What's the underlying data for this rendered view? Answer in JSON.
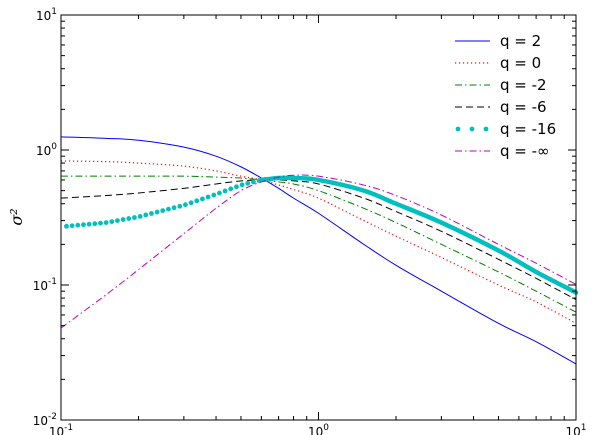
{
  "chart_data": {
    "type": "line",
    "title": "",
    "xlabel": "",
    "ylabel": "σ²",
    "xscale": "log",
    "yscale": "log",
    "xlim": [
      0.1,
      10
    ],
    "ylim": [
      0.01,
      10
    ],
    "grid": false,
    "legend_position": "top-right",
    "x_ticks": [
      {
        "value": 0.1,
        "base": "10",
        "exp": "-1"
      },
      {
        "value": 1,
        "base": "10",
        "exp": "0"
      },
      {
        "value": 10,
        "base": "10",
        "exp": "1"
      }
    ],
    "y_ticks": [
      {
        "value": 0.01,
        "base": "10",
        "exp": "-2"
      },
      {
        "value": 0.1,
        "base": "10",
        "exp": "-1"
      },
      {
        "value": 1,
        "base": "10",
        "exp": "0"
      },
      {
        "value": 10,
        "base": "10",
        "exp": "1"
      }
    ],
    "x": [
      0.1,
      0.15,
      0.2,
      0.3,
      0.4,
      0.5,
      0.6,
      0.7,
      0.8,
      1.0,
      1.5,
      2.0,
      3.0,
      5.0,
      7.0,
      10.0
    ],
    "series": [
      {
        "name": "q = 2",
        "color": "#0000ff",
        "style": "solid",
        "values": [
          1.25,
          1.22,
          1.18,
          1.05,
          0.9,
          0.75,
          0.62,
          0.52,
          0.44,
          0.34,
          0.2,
          0.14,
          0.09,
          0.052,
          0.038,
          0.026
        ]
      },
      {
        "name": "q = 0",
        "color": "#ff0000",
        "style": "dotted",
        "values": [
          0.83,
          0.82,
          0.8,
          0.76,
          0.7,
          0.64,
          0.6,
          0.55,
          0.51,
          0.44,
          0.3,
          0.23,
          0.16,
          0.1,
          0.075,
          0.052
        ]
      },
      {
        "name": "q = -2",
        "color": "#007f00",
        "style": "dashdot",
        "values": [
          0.64,
          0.64,
          0.64,
          0.64,
          0.63,
          0.62,
          0.6,
          0.58,
          0.56,
          0.5,
          0.37,
          0.29,
          0.2,
          0.125,
          0.09,
          0.063
        ]
      },
      {
        "name": "q = -6",
        "color": "#000000",
        "style": "dashed",
        "values": [
          0.44,
          0.46,
          0.48,
          0.52,
          0.56,
          0.59,
          0.6,
          0.6,
          0.59,
          0.56,
          0.44,
          0.35,
          0.25,
          0.155,
          0.112,
          0.078
        ]
      },
      {
        "name": "q = -16",
        "color": "#00bfbf",
        "style": "dots-thick",
        "values": [
          0.27,
          0.29,
          0.32,
          0.39,
          0.47,
          0.55,
          0.6,
          0.62,
          0.62,
          0.6,
          0.5,
          0.4,
          0.29,
          0.18,
          0.125,
          0.088
        ]
      },
      {
        "name": "q = -∞",
        "color": "#bf00bf",
        "style": "dashdot",
        "values": [
          0.048,
          0.085,
          0.13,
          0.24,
          0.37,
          0.5,
          0.58,
          0.63,
          0.65,
          0.64,
          0.55,
          0.46,
          0.33,
          0.2,
          0.145,
          0.101
        ]
      }
    ]
  }
}
